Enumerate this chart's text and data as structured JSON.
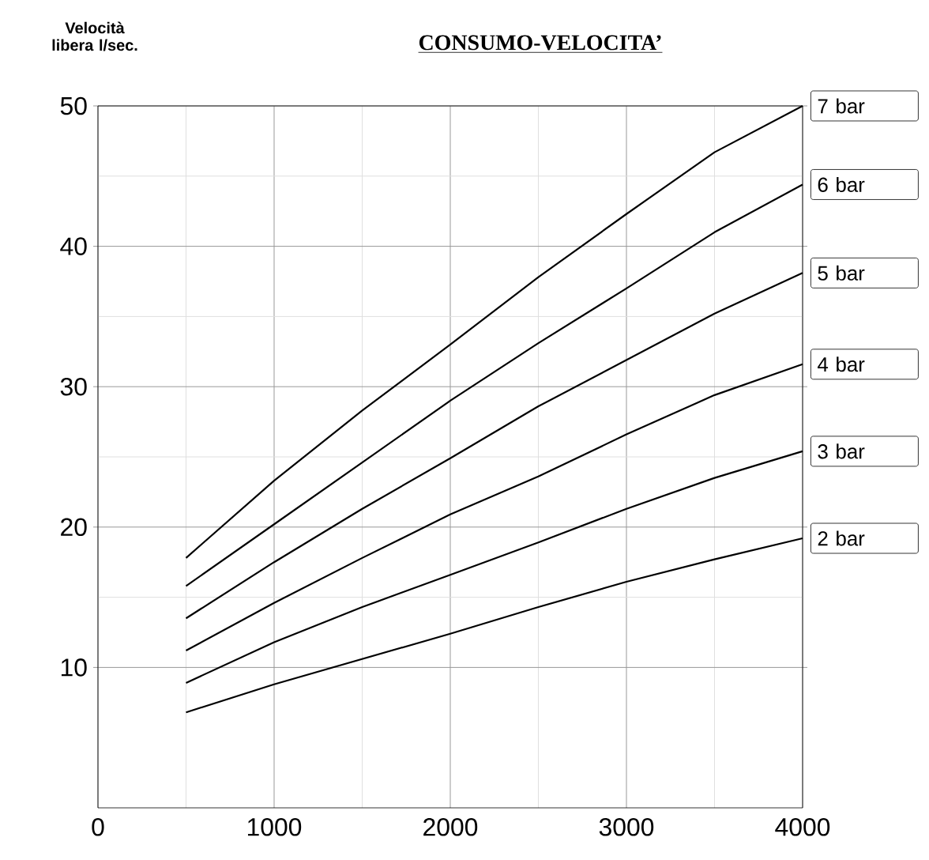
{
  "chart_data": {
    "type": "line",
    "title": "CONSUMO-VELOCITA’",
    "ylabel": "Velocità libera l/sec.",
    "x": [
      500,
      1000,
      1500,
      2000,
      2500,
      3000,
      3500,
      4000
    ],
    "xlim": [
      0,
      4000
    ],
    "xticks": [
      0,
      1000,
      2000,
      3000,
      4000
    ],
    "ylim": [
      0,
      50
    ],
    "yticks": [
      10,
      20,
      30,
      40,
      50
    ],
    "grid": true,
    "legend": "right",
    "marker": "none",
    "line_style": "solid",
    "series": [
      {
        "name": "7 bar",
        "color": "#000000",
        "values": [
          17.8,
          23.3,
          28.3,
          33.0,
          37.8,
          42.3,
          46.7,
          50.0
        ]
      },
      {
        "name": "6 bar",
        "color": "#000000",
        "values": [
          15.8,
          20.2,
          24.6,
          29.0,
          33.1,
          37.0,
          41.0,
          44.4
        ]
      },
      {
        "name": "5 bar",
        "color": "#000000",
        "values": [
          13.5,
          17.5,
          21.3,
          24.9,
          28.6,
          31.9,
          35.2,
          38.1
        ]
      },
      {
        "name": "4 bar",
        "color": "#000000",
        "values": [
          11.2,
          14.6,
          17.8,
          20.9,
          23.6,
          26.6,
          29.4,
          31.6
        ]
      },
      {
        "name": "3 bar",
        "color": "#000000",
        "values": [
          8.9,
          11.8,
          14.3,
          16.6,
          18.9,
          21.3,
          23.5,
          25.4
        ]
      },
      {
        "name": "2 bar",
        "color": "#000000",
        "values": [
          6.8,
          8.8,
          10.6,
          12.4,
          14.3,
          16.1,
          17.7,
          19.2
        ]
      }
    ]
  }
}
